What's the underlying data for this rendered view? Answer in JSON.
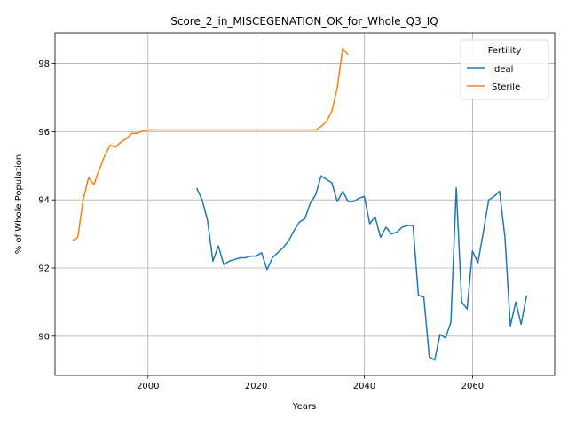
{
  "chart_data": {
    "type": "line",
    "title": "Score_2_in_MISCEGENATION_OK_for_Whole_Q3_IQ",
    "xlabel": "Years",
    "ylabel": "% of Whole Population",
    "xlim": [
      1982.8,
      2075.2
    ],
    "ylim": [
      88.85,
      98.9
    ],
    "xticks": [
      2000,
      2020,
      2040,
      2060
    ],
    "yticks": [
      90,
      92,
      94,
      96,
      98
    ],
    "grid": true,
    "legend": {
      "title": "Fertility",
      "placement": "top-right"
    },
    "series": [
      {
        "name": "Ideal",
        "color": "#1f77b4",
        "x": [
          2009,
          2010,
          2011,
          2012,
          2013,
          2014,
          2015,
          2016,
          2017,
          2018,
          2019,
          2020,
          2021,
          2022,
          2023,
          2024,
          2025,
          2026,
          2027,
          2028,
          2029,
          2030,
          2031,
          2032,
          2033,
          2034,
          2035,
          2036,
          2037,
          2038,
          2039,
          2040,
          2041,
          2042,
          2043,
          2044,
          2045,
          2046,
          2047,
          2048,
          2049,
          2050,
          2051,
          2052,
          2053,
          2054,
          2055,
          2056,
          2057,
          2058,
          2059,
          2060,
          2061,
          2062,
          2063,
          2064,
          2065,
          2066,
          2067,
          2068,
          2069,
          2070
        ],
        "values": [
          94.35,
          94.0,
          93.4,
          92.2,
          92.65,
          92.1,
          92.2,
          92.25,
          92.3,
          92.3,
          92.35,
          92.35,
          92.45,
          91.95,
          92.3,
          92.45,
          92.6,
          92.8,
          93.1,
          93.35,
          93.45,
          93.9,
          94.15,
          94.7,
          94.6,
          94.5,
          93.95,
          94.25,
          93.95,
          93.95,
          94.05,
          94.1,
          93.3,
          93.5,
          92.9,
          93.2,
          93.0,
          93.05,
          93.2,
          93.25,
          93.25,
          91.2,
          91.15,
          89.4,
          89.3,
          90.05,
          89.95,
          90.4,
          94.35,
          91.0,
          90.8,
          92.5,
          92.15,
          93.05,
          94.0,
          94.1,
          94.25,
          92.9,
          90.3,
          91.0,
          90.35,
          91.2
        ]
      },
      {
        "name": "Sterile",
        "color": "#ff7f0e",
        "x": [
          1986,
          1987,
          1988,
          1989,
          1990,
          1991,
          1992,
          1993,
          1994,
          1995,
          1996,
          1997,
          1998,
          1999,
          2000,
          2001,
          2002,
          2003,
          2004,
          2005,
          2006,
          2007,
          2008,
          2009,
          2010,
          2011,
          2012,
          2013,
          2014,
          2015,
          2016,
          2017,
          2018,
          2019,
          2020,
          2021,
          2022,
          2023,
          2024,
          2025,
          2026,
          2027,
          2028,
          2029,
          2030,
          2031,
          2032,
          2033,
          2034,
          2035,
          2036,
          2037
        ],
        "values": [
          92.8,
          92.9,
          94.0,
          94.65,
          94.45,
          94.9,
          95.3,
          95.6,
          95.55,
          95.7,
          95.8,
          95.95,
          95.95,
          96.02,
          96.05,
          96.05,
          96.05,
          96.05,
          96.05,
          96.05,
          96.05,
          96.05,
          96.05,
          96.05,
          96.05,
          96.05,
          96.05,
          96.05,
          96.05,
          96.05,
          96.05,
          96.05,
          96.05,
          96.05,
          96.05,
          96.05,
          96.05,
          96.05,
          96.05,
          96.05,
          96.05,
          96.05,
          96.05,
          96.05,
          96.05,
          96.05,
          96.15,
          96.3,
          96.6,
          97.3,
          98.45,
          98.25
        ]
      }
    ]
  }
}
